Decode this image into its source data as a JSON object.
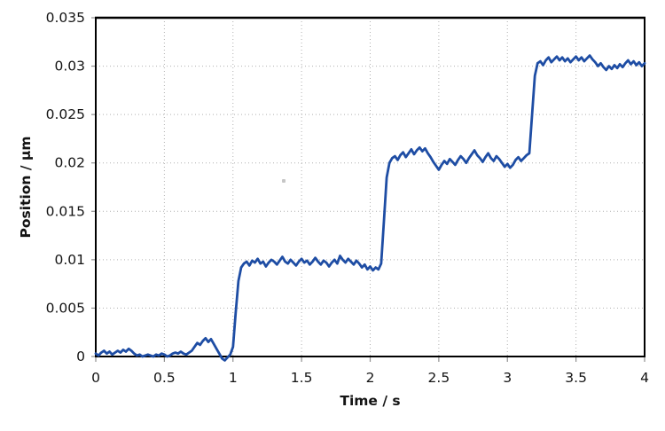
{
  "chart_data": {
    "type": "line",
    "title": "",
    "xlabel": "Time / s",
    "ylabel": "Position / µm",
    "xlim": [
      0,
      4
    ],
    "ylim": [
      0,
      0.035
    ],
    "x_tick_labels": [
      "0",
      "0.5",
      "1",
      "1.5",
      "2",
      "2.5",
      "3",
      "3.5",
      "4"
    ],
    "y_tick_labels": [
      "0",
      "0.005",
      "0.01",
      "0.015",
      "0.02",
      "0.025",
      "0.03",
      "0.035"
    ],
    "grid": true,
    "legend": "none",
    "line_color": "#1e4da4",
    "line_width": 2.8,
    "steps_summary": {
      "plateau_levels_um": [
        0.0,
        0.0097,
        0.0205,
        0.0305
      ],
      "step_times_s": [
        1.0,
        2.1,
        3.17
      ],
      "noise_amplitude_um": 0.0005
    },
    "series": [
      {
        "name": "position",
        "t0": 0,
        "dt": 0.02,
        "values": [
          0.0003,
          0.0001,
          0.0004,
          0.0006,
          0.0003,
          0.0005,
          0.0002,
          0.0004,
          0.0006,
          0.0004,
          0.0007,
          0.0005,
          0.0008,
          0.0006,
          0.0003,
          0.0001,
          0.0002,
          0.0,
          0.0001,
          0.0002,
          0.0001,
          0.0,
          0.0002,
          0.0001,
          0.0003,
          0.0002,
          0.0,
          0.0001,
          0.0003,
          0.0004,
          0.0003,
          0.0005,
          0.0003,
          0.0002,
          0.0004,
          0.0006,
          0.001,
          0.0014,
          0.0012,
          0.0016,
          0.0019,
          0.0015,
          0.0018,
          0.0013,
          0.0008,
          0.0003,
          -0.0002,
          -0.0004,
          -0.0001,
          0.0002,
          0.001,
          0.0045,
          0.0078,
          0.0092,
          0.0096,
          0.0098,
          0.0094,
          0.0099,
          0.0097,
          0.0101,
          0.0096,
          0.0098,
          0.0093,
          0.0097,
          0.01,
          0.0098,
          0.0095,
          0.0099,
          0.0103,
          0.0098,
          0.0096,
          0.01,
          0.0097,
          0.0094,
          0.0098,
          0.0101,
          0.0097,
          0.0099,
          0.0095,
          0.0098,
          0.0102,
          0.0098,
          0.0095,
          0.0099,
          0.0097,
          0.0093,
          0.0097,
          0.01,
          0.0096,
          0.0104,
          0.01,
          0.0097,
          0.0101,
          0.0098,
          0.0095,
          0.0099,
          0.0096,
          0.0092,
          0.0095,
          0.009,
          0.0093,
          0.0089,
          0.0092,
          0.009,
          0.0096,
          0.014,
          0.0185,
          0.02,
          0.0205,
          0.0207,
          0.0203,
          0.0208,
          0.0211,
          0.0206,
          0.021,
          0.0214,
          0.0209,
          0.0213,
          0.0216,
          0.0212,
          0.0215,
          0.021,
          0.0206,
          0.0201,
          0.0197,
          0.0193,
          0.0198,
          0.0202,
          0.0199,
          0.0204,
          0.0201,
          0.0198,
          0.0203,
          0.0207,
          0.0204,
          0.02,
          0.0205,
          0.0209,
          0.0213,
          0.0208,
          0.0205,
          0.0201,
          0.0206,
          0.021,
          0.0205,
          0.0202,
          0.0207,
          0.0204,
          0.02,
          0.0196,
          0.0199,
          0.0195,
          0.0198,
          0.0203,
          0.0206,
          0.0202,
          0.0205,
          0.0208,
          0.021,
          0.025,
          0.029,
          0.0303,
          0.0305,
          0.0301,
          0.0306,
          0.0309,
          0.0304,
          0.0307,
          0.031,
          0.0306,
          0.0309,
          0.0305,
          0.0308,
          0.0304,
          0.0307,
          0.031,
          0.0306,
          0.0309,
          0.0305,
          0.0308,
          0.0311,
          0.0307,
          0.0304,
          0.03,
          0.0303,
          0.0299,
          0.0296,
          0.03,
          0.0297,
          0.0301,
          0.0298,
          0.0302,
          0.0299,
          0.0303,
          0.0306,
          0.0302,
          0.0305,
          0.0301,
          0.0304,
          0.03,
          0.0303
        ]
      }
    ]
  }
}
